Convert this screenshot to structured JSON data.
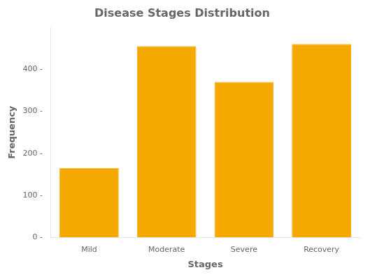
{
  "chart_data": {
    "type": "bar",
    "title": "Disease Stages Distribution",
    "xlabel": "Stages",
    "ylabel": "Frequency",
    "categories": [
      "Mild",
      "Moderate",
      "Severe",
      "Recovery"
    ],
    "values": [
      165,
      455,
      370,
      460
    ],
    "color": "#F5A800",
    "ylim": [
      0,
      500
    ],
    "yticks": [
      {
        "value": 0,
        "label": "0 -"
      },
      {
        "value": 100,
        "label": "100 -"
      },
      {
        "value": 200,
        "label": "200 -"
      },
      {
        "value": 300,
        "label": "300 -"
      },
      {
        "value": 400,
        "label": "400 -"
      }
    ],
    "grid": false
  }
}
